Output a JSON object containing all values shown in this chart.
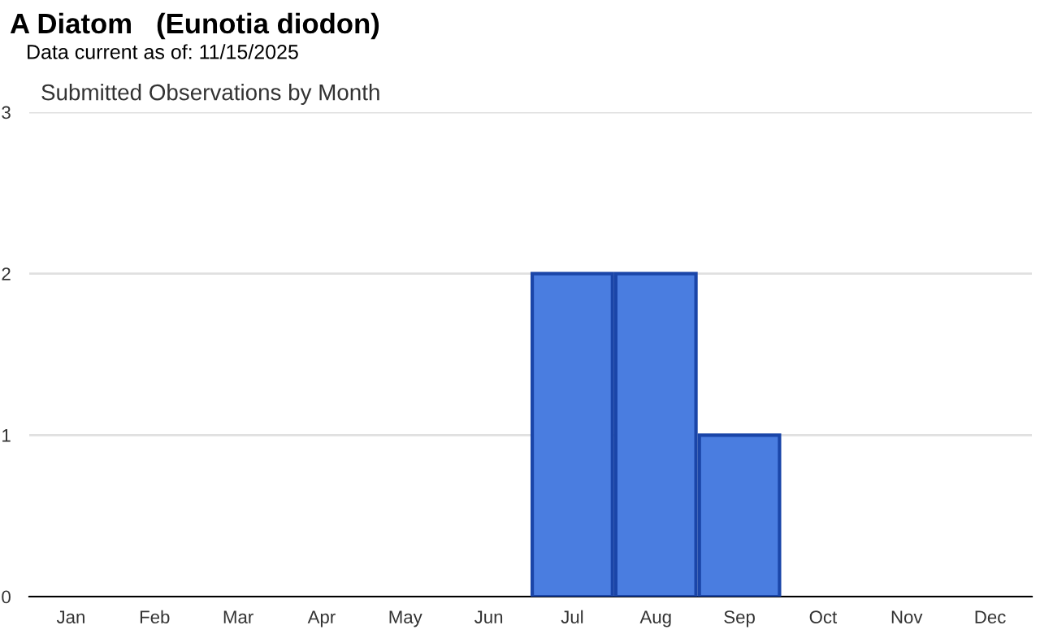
{
  "chart_data": {
    "type": "bar",
    "title": "A Diatom   (Eunotia diodon)",
    "subtitle": "Data current as of: 11/15/2025",
    "annotations": [
      "Submitted Observations by Month"
    ],
    "categories": [
      "Jan",
      "Feb",
      "Mar",
      "Apr",
      "May",
      "Jun",
      "Jul",
      "Aug",
      "Sep",
      "Oct",
      "Nov",
      "Dec"
    ],
    "values": [
      0,
      0,
      0,
      0,
      0,
      0,
      2,
      2,
      1,
      0,
      0,
      0
    ],
    "color": "#4a7de0",
    "ylim": [
      0,
      3
    ],
    "yticks": [
      0,
      1,
      2,
      3
    ],
    "grid": "y"
  }
}
